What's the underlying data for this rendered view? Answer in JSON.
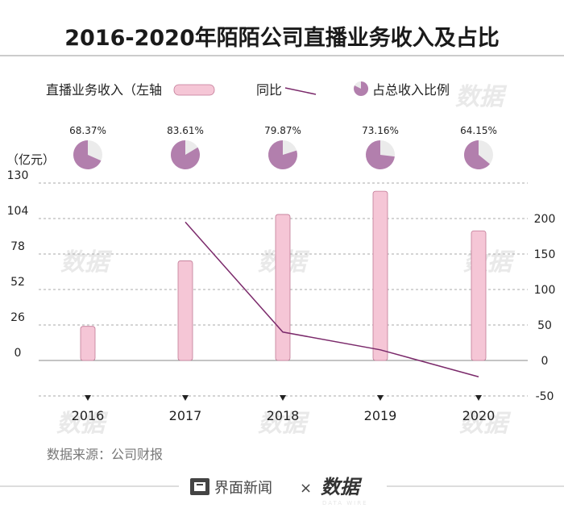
{
  "header": {
    "title": "2016-2020年陌陌公司直播业务收入及占比"
  },
  "legend": {
    "bar_label": "直播业务收入（左轴",
    "line_label": "同比",
    "pie_label": "占总收入比例"
  },
  "axis": {
    "unit_label": "（亿元）"
  },
  "source": "数据来源：公司财报",
  "footer": {
    "brand": "界面新闻",
    "separator": "×",
    "partner": "数据"
  },
  "watermark": {
    "text": "数据",
    "sub": "DATA WIRE"
  },
  "colors": {
    "bar": "#f5c6d6",
    "bar_stroke": "#c27a96",
    "line": "#7b2a6b",
    "pie": "#b27fad",
    "pie_bg": "#ebebeb"
  },
  "chart_data": {
    "type": "bar",
    "title": "2016-2020年陌陌公司直播业务收入及占比",
    "categories": [
      "2016",
      "2017",
      "2018",
      "2019",
      "2020"
    ],
    "series": [
      {
        "name": "直播业务收入（左轴",
        "axis": "left",
        "type": "bar",
        "unit": "亿元",
        "values": [
          25,
          73,
          107,
          124,
          95
        ]
      },
      {
        "name": "同比",
        "axis": "right",
        "type": "line",
        "unit": "%",
        "values": [
          null,
          195,
          40,
          15,
          -23
        ]
      },
      {
        "name": "占总收入比例",
        "type": "pie",
        "values": [
          68.37,
          83.61,
          79.87,
          73.16,
          64.15
        ],
        "labels": [
          "68.37%",
          "83.61%",
          "79.87%",
          "73.16%",
          "64.15%"
        ]
      }
    ],
    "left_axis": {
      "ylim": [
        0,
        130
      ],
      "ticks": [
        "0",
        "26",
        "52",
        "78",
        "104",
        "130"
      ]
    },
    "right_axis": {
      "ylim": [
        -50,
        250
      ],
      "ticks": [
        "-50",
        "0",
        "50",
        "100",
        "150",
        "200"
      ]
    },
    "ylabel": "（亿元）"
  }
}
